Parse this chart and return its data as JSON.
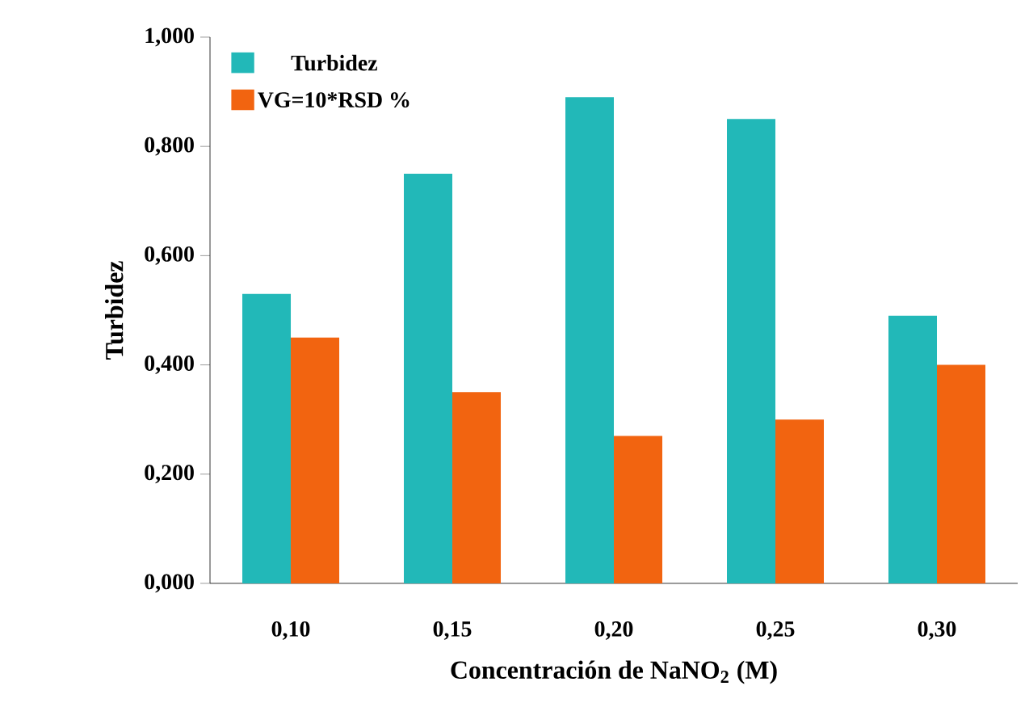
{
  "chart_data": {
    "type": "bar",
    "xlabel": "Concentración de NaNO$_{2}$ (M)",
    "ylabel": "Turbidez",
    "categories": [
      "0,10",
      "0,15",
      "0,20",
      "0,25",
      "0,30"
    ],
    "series": [
      {
        "name": "Turbidez",
        "color": "#22b8b8",
        "values": [
          0.53,
          0.75,
          0.89,
          0.85,
          0.49
        ]
      },
      {
        "name": "VG=10*RSD %",
        "color": "#f26410",
        "values": [
          0.45,
          0.35,
          0.27,
          0.3,
          0.4
        ]
      }
    ],
    "ylim": [
      0,
      1
    ],
    "yticks": [
      {
        "value": 0,
        "label": "0,000"
      },
      {
        "value": 0.2,
        "label": "0,200"
      },
      {
        "value": 0.4,
        "label": "0,400"
      },
      {
        "value": 0.6,
        "label": "0,600"
      },
      {
        "value": 0.8,
        "label": "0,800"
      },
      {
        "value": 1,
        "label": "1,000"
      }
    ],
    "grid": false,
    "legend": "top left"
  }
}
